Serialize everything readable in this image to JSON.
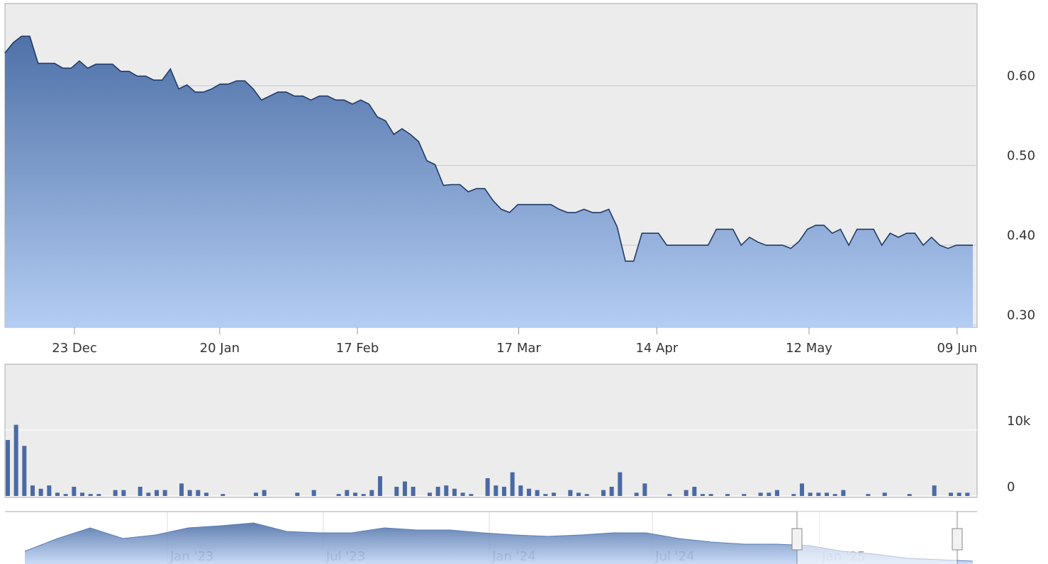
{
  "chart_data": [
    {
      "type": "line",
      "values": [
        0.641,
        0.654,
        0.662,
        0.662,
        0.628,
        0.628,
        0.628,
        0.622,
        0.622,
        0.631,
        0.622,
        0.627,
        0.627,
        0.627,
        0.618,
        0.618,
        0.612,
        0.612,
        0.607,
        0.607,
        0.621,
        0.596,
        0.601,
        0.592,
        0.592,
        0.596,
        0.602,
        0.602,
        0.606,
        0.606,
        0.596,
        0.582,
        0.587,
        0.592,
        0.592,
        0.587,
        0.587,
        0.582,
        0.587,
        0.587,
        0.582,
        0.582,
        0.577,
        0.582,
        0.577,
        0.561,
        0.556,
        0.539,
        0.546,
        0.539,
        0.53,
        0.506,
        0.501,
        0.475,
        0.476,
        0.476,
        0.467,
        0.471,
        0.471,
        0.456,
        0.445,
        0.441,
        0.451,
        0.451,
        0.451,
        0.451,
        0.451,
        0.445,
        0.441,
        0.441,
        0.445,
        0.441,
        0.441,
        0.445,
        0.423,
        0.38,
        0.38,
        0.415,
        0.415,
        0.415,
        0.4,
        0.4,
        0.4,
        0.4,
        0.4,
        0.4,
        0.42,
        0.42,
        0.42,
        0.4,
        0.41,
        0.404,
        0.4,
        0.4,
        0.4,
        0.396,
        0.405,
        0.42,
        0.425,
        0.425,
        0.415,
        0.42,
        0.4,
        0.42,
        0.42,
        0.42,
        0.4,
        0.415,
        0.41,
        0.415,
        0.415,
        0.4,
        0.41,
        0.4,
        0.396,
        0.4,
        0.4,
        0.4
      ],
      "color": "#1f3a66",
      "ylim": [
        0.297,
        0.703
      ],
      "yticks": [
        {
          "value": 0.3,
          "label": "0.30"
        },
        {
          "value": 0.4,
          "label": "0.40"
        },
        {
          "value": 0.5,
          "label": "0.50"
        },
        {
          "value": 0.6,
          "label": "0.60"
        }
      ],
      "xticks": [
        {
          "value": 8.4,
          "label": "23 Dec"
        },
        {
          "value": 25.96,
          "label": "20 Jan"
        },
        {
          "value": 42.6,
          "label": "17 Feb"
        },
        {
          "value": 62.1,
          "label": "17 Mar"
        },
        {
          "value": 78.8,
          "label": "14 Apr"
        },
        {
          "value": 97.2,
          "label": "12 May"
        },
        {
          "value": 115.1,
          "label": "09 Jun"
        }
      ],
      "grid": true
    },
    {
      "type": "bar",
      "values": [
        8500,
        10800,
        7600,
        1600,
        1100,
        1600,
        500,
        300,
        1400,
        500,
        300,
        300,
        0,
        900,
        900,
        0,
        1400,
        500,
        900,
        900,
        0,
        1900,
        900,
        900,
        500,
        0,
        300,
        0,
        0,
        0,
        500,
        900,
        0,
        0,
        0,
        500,
        0,
        900,
        0,
        0,
        300,
        900,
        500,
        300,
        900,
        3000,
        0,
        1400,
        2200,
        1400,
        0,
        500,
        1400,
        1600,
        1100,
        500,
        300,
        0,
        2700,
        1600,
        1400,
        3600,
        1600,
        1100,
        900,
        300,
        500,
        0,
        900,
        500,
        300,
        0,
        900,
        1400,
        3600,
        0,
        500,
        1900,
        0,
        0,
        300,
        0,
        900,
        1400,
        300,
        300,
        0,
        300,
        0,
        300,
        0,
        500,
        500,
        900,
        0,
        300,
        1900,
        500,
        500,
        500,
        300,
        900,
        0,
        0,
        300,
        0,
        500,
        0,
        0,
        300,
        0,
        0,
        1600,
        0,
        500,
        500,
        500,
        0
      ],
      "color": "#4a6aa5",
      "ylim": [
        0,
        20000
      ],
      "yticks": [
        0,
        {
          "value": 10000,
          "label": "10k"
        }
      ],
      "grid": true
    },
    {
      "type": "area",
      "values": [
        0.52,
        0.7,
        0.85,
        0.7,
        0.75,
        0.85,
        0.88,
        0.92,
        0.8,
        0.78,
        0.78,
        0.85,
        0.82,
        0.82,
        0.78,
        0.75,
        0.73,
        0.75,
        0.78,
        0.78,
        0.7,
        0.65,
        0.62,
        0.62,
        0.6,
        0.52,
        0.48,
        0.42,
        0.4,
        0.38
      ],
      "color": "#5a7db5",
      "ylim": [
        0.34,
        1.08
      ],
      "xticks": [
        {
          "value": 4.36,
          "label": "Jan '23"
        },
        {
          "value": 9.13,
          "label": "Jul '23"
        },
        {
          "value": 14.21,
          "label": "Jan '24"
        },
        {
          "value": 19.2,
          "label": "Jul '24"
        },
        {
          "value": 24.3,
          "label": "Jan '25"
        }
      ]
    }
  ]
}
